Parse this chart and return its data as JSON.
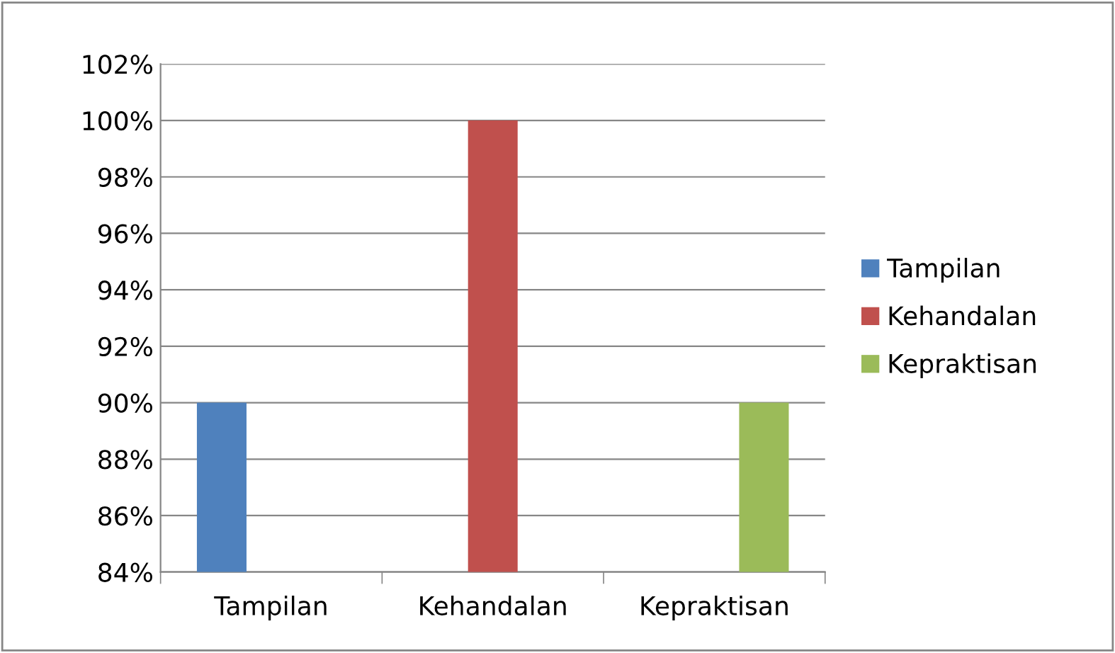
{
  "chart_data": {
    "type": "bar",
    "categories": [
      "Tampilan",
      "Kehandalan",
      "Kepraktisan"
    ],
    "series": [
      {
        "name": "Tampilan",
        "color": "#4f81bd",
        "values": [
          90,
          null,
          null
        ]
      },
      {
        "name": "Kehandalan",
        "color": "#c0504d",
        "values": [
          null,
          100,
          null
        ]
      },
      {
        "name": "Kepraktisan",
        "color": "#9bbb59",
        "values": [
          null,
          null,
          90
        ]
      }
    ],
    "ylim": [
      84,
      102
    ],
    "yticks": [
      {
        "value": 84,
        "label": "84%"
      },
      {
        "value": 86,
        "label": "86%"
      },
      {
        "value": 88,
        "label": "88%"
      },
      {
        "value": 90,
        "label": "90%"
      },
      {
        "value": 92,
        "label": "92%"
      },
      {
        "value": 94,
        "label": "94%"
      },
      {
        "value": 96,
        "label": "96%"
      },
      {
        "value": 98,
        "label": "98%"
      },
      {
        "value": 100,
        "label": "100%"
      },
      {
        "value": 102,
        "label": "102%"
      }
    ],
    "grid": "y",
    "legend": "right"
  }
}
